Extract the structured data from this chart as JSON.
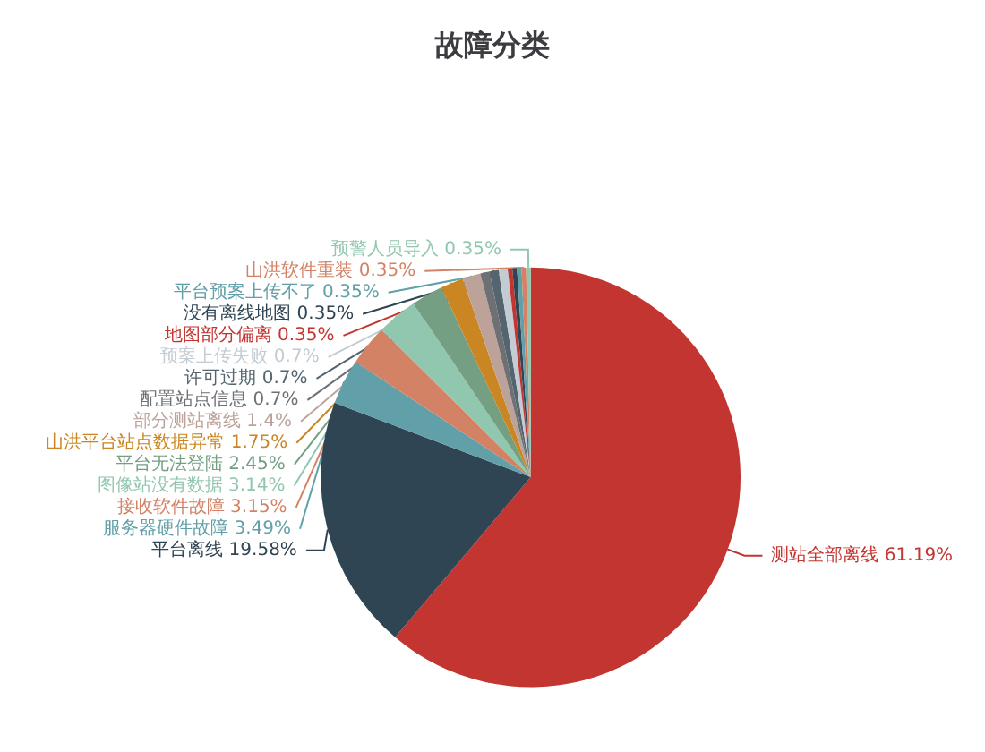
{
  "chart_data": {
    "type": "pie",
    "title": "故障分类",
    "categories": [
      "测站全部离线",
      "平台离线",
      "服务器硬件故障",
      "接收软件故障",
      "图像站没有数据",
      "平台无法登陆",
      "山洪平台站点数据异常",
      "部分测站离线",
      "配置站点信息",
      "许可过期",
      "预案上传失败",
      "地图部分偏离",
      "没有离线地图",
      "平台预案上传不了",
      "山洪软件重装",
      "预警人员导入"
    ],
    "values": [
      61.19,
      19.58,
      3.49,
      3.15,
      3.14,
      2.45,
      1.75,
      1.4,
      0.7,
      0.7,
      0.7,
      0.35,
      0.35,
      0.35,
      0.35,
      0.35
    ],
    "value_labels": [
      "61.19%",
      "19.58%",
      "3.49%",
      "3.15%",
      "3.14%",
      "2.45%",
      "1.75%",
      "1.4%",
      "0.7%",
      "0.7%",
      "0.7%",
      "0.35%",
      "0.35%",
      "0.35%",
      "0.35%",
      "0.35%"
    ],
    "colors": [
      "#c23531",
      "#2f4554",
      "#61a0a8",
      "#d48265",
      "#91c7ae",
      "#749f83",
      "#ca8622",
      "#bda29a",
      "#6e7074",
      "#546570",
      "#c4ccd3",
      "#c23531",
      "#2f4554",
      "#61a0a8",
      "#d48265",
      "#91c7ae"
    ],
    "legend": false
  }
}
